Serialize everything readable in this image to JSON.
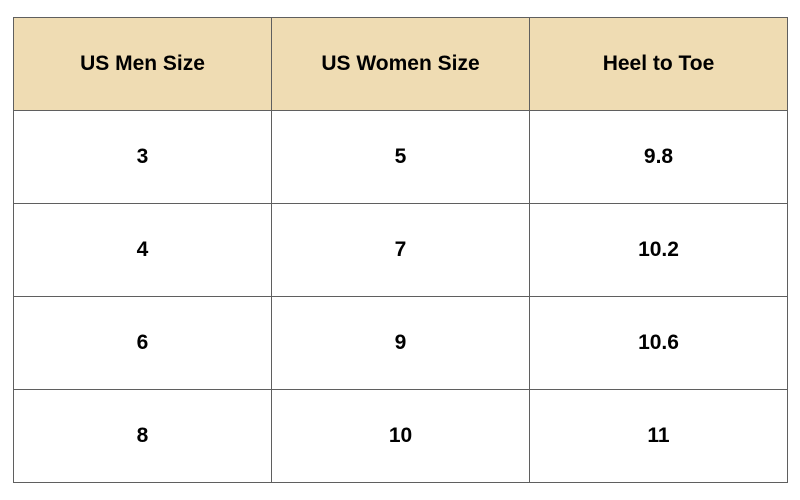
{
  "table": {
    "headers": [
      "US Men Size",
      "US Women Size",
      "Heel to Toe"
    ],
    "rows": [
      [
        "3",
        "5",
        "9.8"
      ],
      [
        "4",
        "7",
        "10.2"
      ],
      [
        "6",
        "9",
        "10.6"
      ],
      [
        "8",
        "10",
        "11"
      ]
    ]
  },
  "colors": {
    "header_background": "#efdcb3",
    "border": "#5f5f5f"
  }
}
